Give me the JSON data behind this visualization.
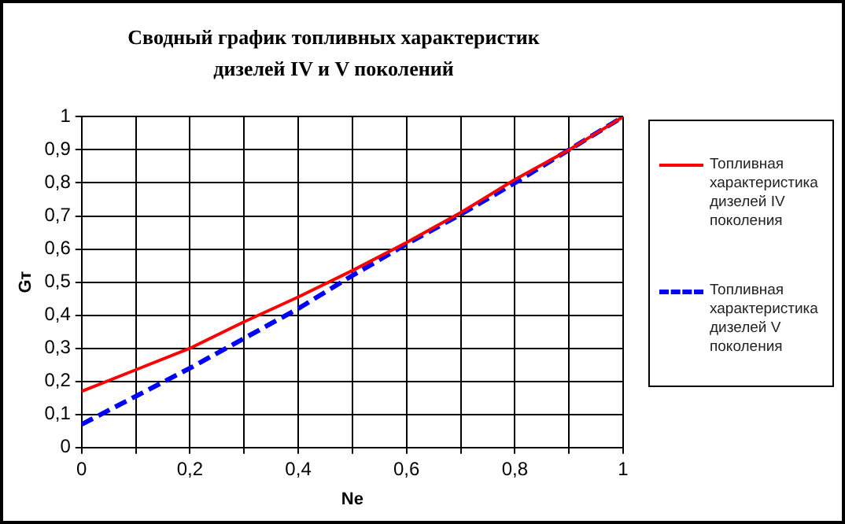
{
  "chart_data": {
    "type": "line",
    "title": "Сводный график топливных характеристик\nдизелей IV и V  поколений",
    "xlabel": "Ne",
    "ylabel": "Gт",
    "x": [
      0,
      0.1,
      0.2,
      0.3,
      0.4,
      0.5,
      0.6,
      0.7,
      0.8,
      0.9,
      1
    ],
    "series": [
      {
        "name": "Топливная характеристика дизелей IV поколения",
        "color": "#ff0000",
        "line_style": "solid",
        "values": [
          0.17,
          0.235,
          0.3,
          0.38,
          0.455,
          0.535,
          0.62,
          0.71,
          0.81,
          0.9,
          1
        ]
      },
      {
        "name": "Топливная характеристика дизелей V поколения",
        "color": "#0000ff",
        "line_style": "dashed",
        "values": [
          0.07,
          0.155,
          0.24,
          0.33,
          0.42,
          0.52,
          0.615,
          0.705,
          0.8,
          0.9,
          1
        ]
      }
    ],
    "xlim": [
      0,
      1
    ],
    "xticks": [
      0,
      {
        "value": 0.1,
        "label": null
      },
      {
        "value": 0.2,
        "label": "0,2"
      },
      {
        "value": 0.3,
        "label": null
      },
      {
        "value": 0.4,
        "label": "0,4"
      },
      {
        "value": 0.5,
        "label": null
      },
      {
        "value": 0.6,
        "label": "0,6"
      },
      {
        "value": 0.7,
        "label": null
      },
      {
        "value": 0.8,
        "label": "0,8"
      },
      {
        "value": 0.9,
        "label": null
      },
      1
    ],
    "ylim": [
      0,
      1
    ],
    "yticks": [
      0,
      {
        "value": 0.1,
        "label": "0,1"
      },
      {
        "value": 0.2,
        "label": "0,2"
      },
      {
        "value": 0.3,
        "label": "0,3"
      },
      {
        "value": 0.4,
        "label": "0,4"
      },
      {
        "value": 0.5,
        "label": "0,5"
      },
      {
        "value": 0.6,
        "label": "0,6"
      },
      {
        "value": 0.7,
        "label": "0,7"
      },
      {
        "value": 0.8,
        "label": "0,8"
      },
      {
        "value": 0.9,
        "label": "0,9"
      },
      1
    ],
    "grid": true,
    "legend": "right",
    "marker": "none"
  }
}
